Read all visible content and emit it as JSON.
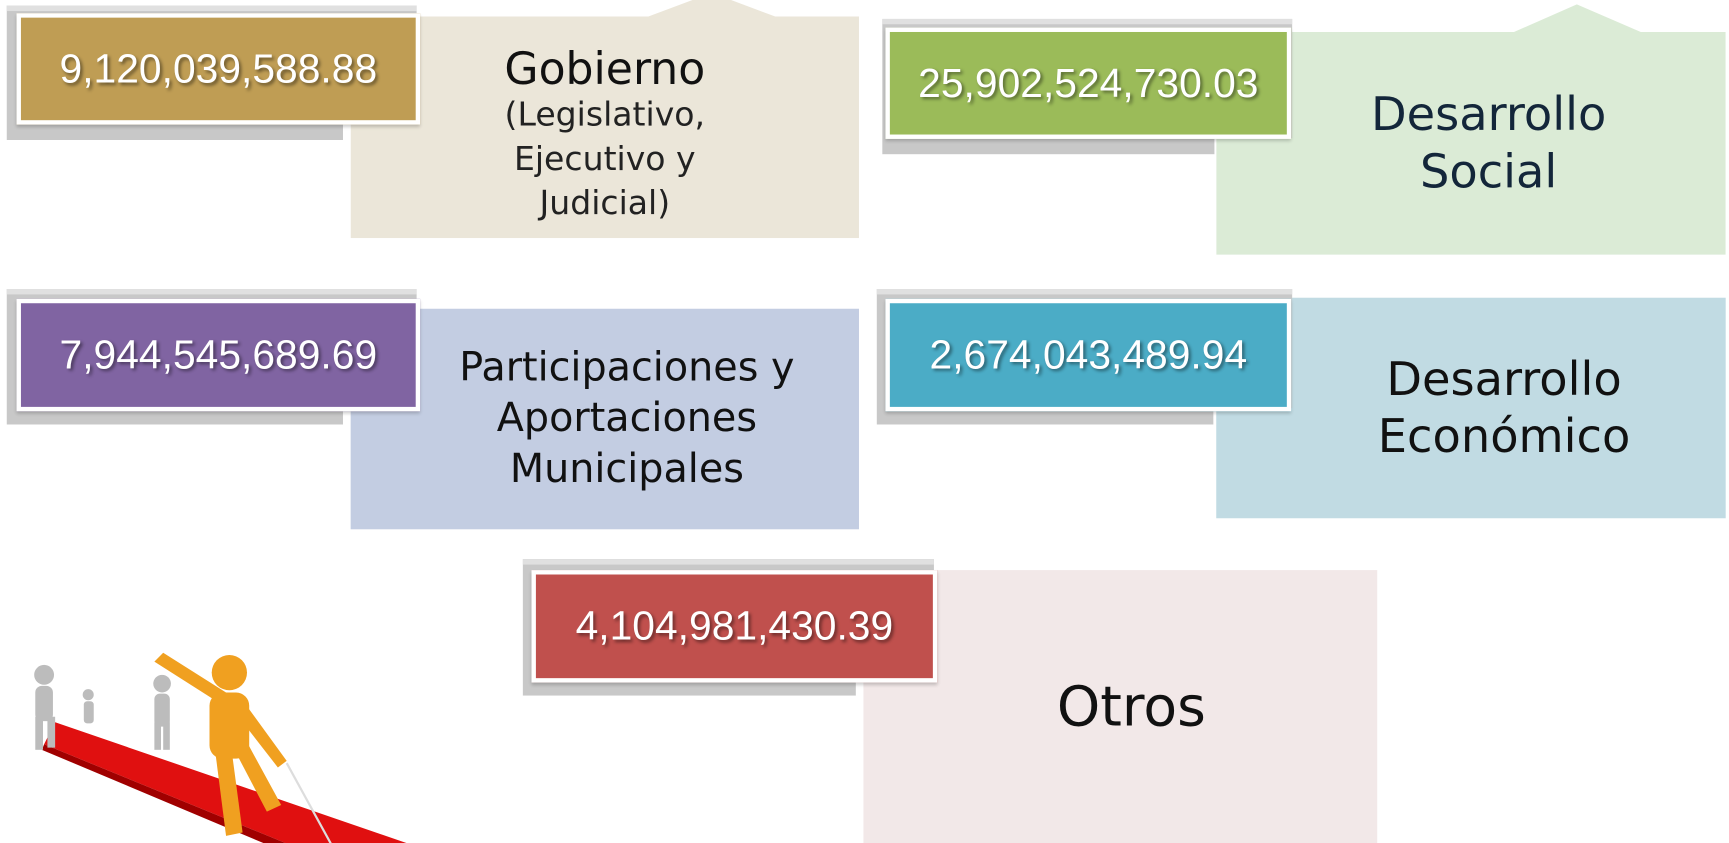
{
  "cards": [
    {
      "value": "9,120,039,588.88",
      "label": "Gobierno",
      "sublabel": "(Legislativo, Ejecutivo y Judicial)"
    },
    {
      "value": "25,902,524,730.03",
      "label": "Desarrollo Social"
    },
    {
      "value": "7,944,545,689.69",
      "label": "Participaciones y Aportaciones Municipales"
    },
    {
      "value": "2,674,043,489.94",
      "label": "Desarrollo Económico"
    },
    {
      "value": "4,104,981,430.39",
      "label": "Otros"
    }
  ]
}
